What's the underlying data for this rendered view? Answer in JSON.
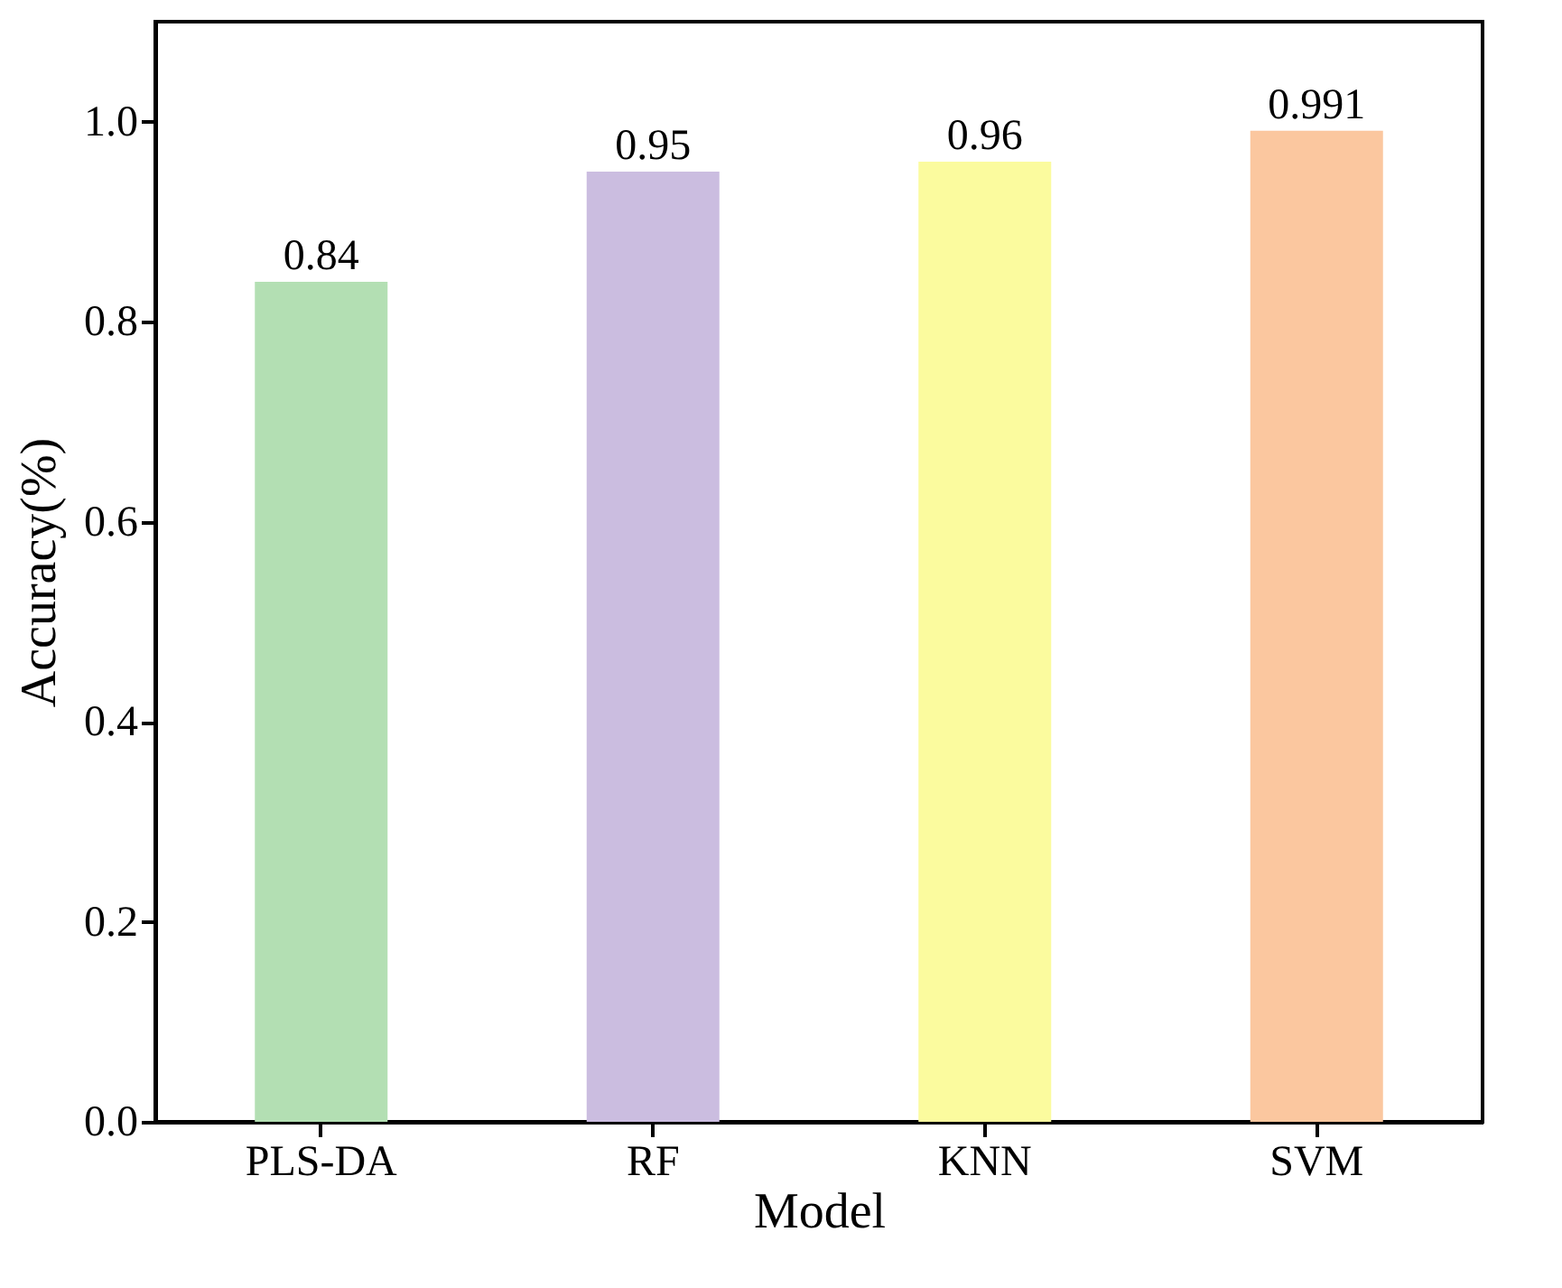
{
  "chart_data": {
    "type": "bar",
    "xlabel": "Model",
    "ylabel": "Accuracy(%)",
    "categories": [
      "PLS-DA",
      "RF",
      "KNN",
      "SVM"
    ],
    "values": [
      0.84,
      0.95,
      0.96,
      0.991
    ],
    "colors": [
      "#b3dfb3",
      "#cbbde0",
      "#fbfb9e",
      "#fbc79f"
    ],
    "ylim": [
      0,
      1.1
    ],
    "yticks": [
      {
        "value": 0,
        "label": "0.0"
      },
      {
        "value": 0.2,
        "label": "0.2"
      },
      {
        "value": 0.4,
        "label": "0.4"
      },
      {
        "value": 0.6,
        "label": "0.6"
      },
      {
        "value": 0.8,
        "label": "0.8"
      },
      {
        "value": 1.0,
        "label": "1.0"
      }
    ],
    "data_labels": true
  }
}
